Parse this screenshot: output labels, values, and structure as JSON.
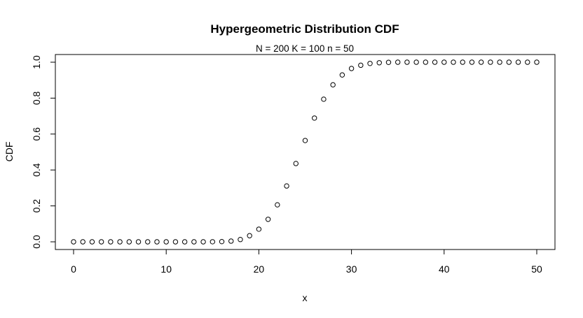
{
  "chart_data": {
    "type": "scatter",
    "title": "Hypergeometric Distribution CDF",
    "subtitle": "N = 200  K = 100  n = 50",
    "xlabel": "x",
    "ylabel": "CDF",
    "xlim": [
      0,
      50
    ],
    "ylim": [
      0,
      1
    ],
    "x_ticks": [
      0,
      10,
      20,
      30,
      40,
      50
    ],
    "y_ticks": [
      0.0,
      0.2,
      0.4,
      0.6,
      0.8,
      1.0
    ],
    "x_tick_labels": [
      "0",
      "10",
      "20",
      "30",
      "40",
      "50"
    ],
    "y_tick_labels": [
      "0.0",
      "0.2",
      "0.4",
      "0.6",
      "0.8",
      "1.0"
    ],
    "grid": false,
    "marker": "open-circle",
    "x": [
      0,
      1,
      2,
      3,
      4,
      5,
      6,
      7,
      8,
      9,
      10,
      11,
      12,
      13,
      14,
      15,
      16,
      17,
      18,
      19,
      20,
      21,
      22,
      23,
      24,
      25,
      26,
      27,
      28,
      29,
      30,
      31,
      32,
      33,
      34,
      35,
      36,
      37,
      38,
      39,
      40,
      41,
      42,
      43,
      44,
      45,
      46,
      47,
      48,
      49,
      50
    ],
    "y": [
      0,
      0,
      0,
      0,
      0,
      0,
      0,
      0,
      0,
      0,
      0,
      0,
      0,
      0,
      0,
      0.0003,
      0.0012,
      0.004,
      0.0128,
      0.034,
      0.0704,
      0.1254,
      0.206,
      0.311,
      0.436,
      0.564,
      0.689,
      0.794,
      0.874,
      0.929,
      0.965,
      0.983,
      0.993,
      0.997,
      0.999,
      1,
      1,
      1,
      1,
      1,
      1,
      1,
      1,
      1,
      1,
      1,
      1,
      1,
      1,
      1,
      1
    ]
  }
}
